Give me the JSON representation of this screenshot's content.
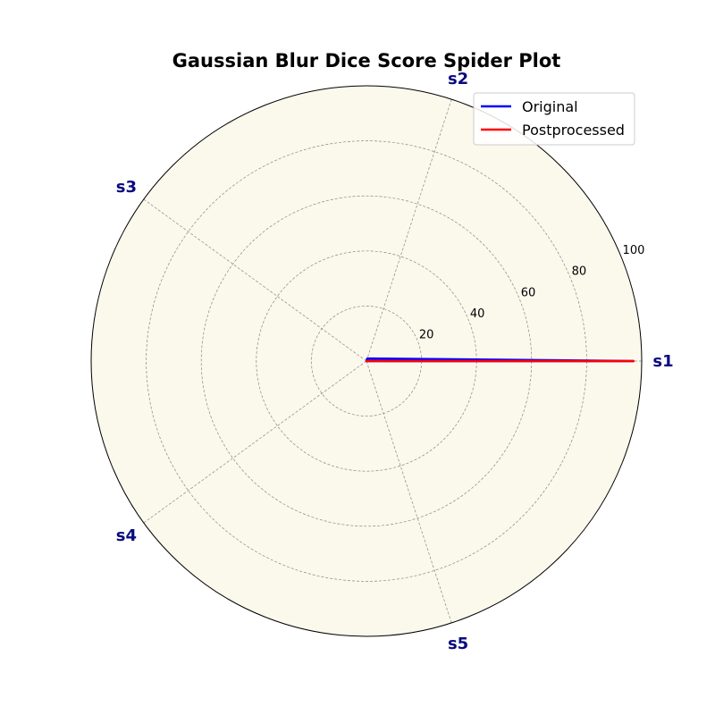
{
  "chart_data": {
    "type": "radar",
    "title": "Gaussian Blur Dice Score Spider Plot",
    "axes": [
      "s1",
      "s2",
      "s3",
      "s4",
      "s5"
    ],
    "rlim": [
      0,
      100
    ],
    "rticks": [
      20,
      40,
      60,
      80,
      100
    ],
    "series": [
      {
        "name": "Original",
        "values": [
          97,
          1,
          0,
          0,
          0
        ],
        "color": "#0000ff"
      },
      {
        "name": "Postprocessed",
        "values": [
          97,
          0,
          0,
          0,
          0
        ],
        "color": "#ff0000"
      }
    ],
    "legend_position": "top-right",
    "grid": true,
    "background_color": "#fbf8ec"
  }
}
